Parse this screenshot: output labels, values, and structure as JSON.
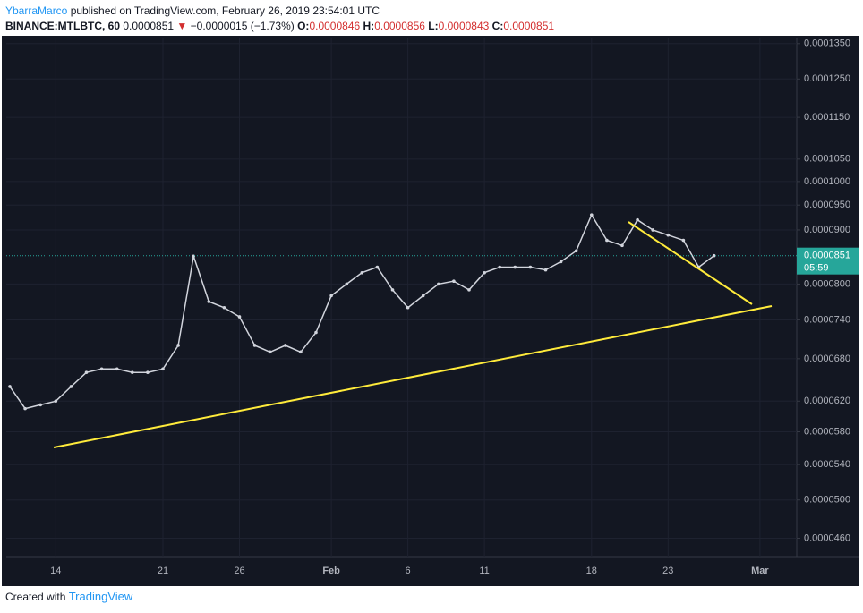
{
  "header": {
    "user": "YbarraMarco",
    "published": "published on TradingView.com, February 26, 2019 23:54:01 UTC",
    "symbol": "BINANCE:MTLBTC, 60",
    "last": "0.0000851",
    "arrow": "▼",
    "change": "−0.0000015 (−1.73%)",
    "o_label": "O:",
    "o": "0.0000846",
    "h_label": "H:",
    "h": "0.0000856",
    "l_label": "L:",
    "l": "0.0000843",
    "c_label": "C:",
    "c": "0.0000851"
  },
  "chart_data": {
    "type": "line",
    "color": "#d1d4dc",
    "log_scale": true,
    "grid": true,
    "categories": [
      null,
      null,
      null,
      "14",
      null,
      null,
      null,
      null,
      null,
      null,
      "21",
      null,
      null,
      null,
      null,
      "26",
      null,
      null,
      null,
      null,
      null,
      "Feb",
      null,
      null,
      null,
      null,
      "6",
      null,
      null,
      null,
      null,
      "11",
      null,
      null,
      null,
      null,
      null,
      null,
      "18",
      null,
      null,
      null,
      null,
      "23",
      null,
      null,
      null,
      null,
      null,
      "Mar",
      null,
      null
    ],
    "values": [
      6.4e-05,
      6.1e-05,
      6.15e-05,
      6.2e-05,
      6.4e-05,
      6.6e-05,
      6.65e-05,
      6.65e-05,
      6.6e-05,
      6.6e-05,
      6.65e-05,
      7e-05,
      8.5e-05,
      7.7e-05,
      7.6e-05,
      7.45e-05,
      7e-05,
      6.9e-05,
      7e-05,
      6.9e-05,
      7.2e-05,
      7.8e-05,
      8e-05,
      8.2e-05,
      8.3e-05,
      7.9e-05,
      7.6e-05,
      7.8e-05,
      8e-05,
      8.05e-05,
      7.9e-05,
      8.2e-05,
      8.3e-05,
      8.3e-05,
      8.3e-05,
      8.25e-05,
      8.4e-05,
      8.6e-05,
      9.3e-05,
      8.8e-05,
      8.7e-05,
      9.2e-05,
      9e-05,
      8.9e-05,
      8.8e-05,
      8.3e-05,
      8.51e-05,
      null,
      null,
      null,
      null,
      null
    ],
    "ylim": [
      4.42e-05,
      0.0001368
    ],
    "yticks": [
      {
        "value": 0.000135,
        "label": "0.0001350"
      },
      {
        "value": 0.000125,
        "label": "0.0001250"
      },
      {
        "value": 0.000115,
        "label": "0.0001150"
      },
      {
        "value": 0.000105,
        "label": "0.0001050"
      },
      {
        "value": 0.0001,
        "label": "0.0001000"
      },
      {
        "value": 9.5e-05,
        "label": "0.0000950"
      },
      {
        "value": 9e-05,
        "label": "0.0000900"
      },
      {
        "value": 8e-05,
        "label": "0.0000800"
      },
      {
        "value": 7.4e-05,
        "label": "0.0000740"
      },
      {
        "value": 6.8e-05,
        "label": "0.0000680"
      },
      {
        "value": 6.2e-05,
        "label": "0.0000620"
      },
      {
        "value": 5.8e-05,
        "label": "0.0000580"
      },
      {
        "value": 5.4e-05,
        "label": "0.0000540"
      },
      {
        "value": 5e-05,
        "label": "0.0000500"
      },
      {
        "value": 4.6e-05,
        "label": "0.0000460"
      }
    ],
    "last_price": {
      "value": 8.51e-05,
      "label": "0.0000851"
    },
    "countdown": "05:59"
  },
  "footer": {
    "created": "Created with",
    "brand": "TradingView"
  }
}
